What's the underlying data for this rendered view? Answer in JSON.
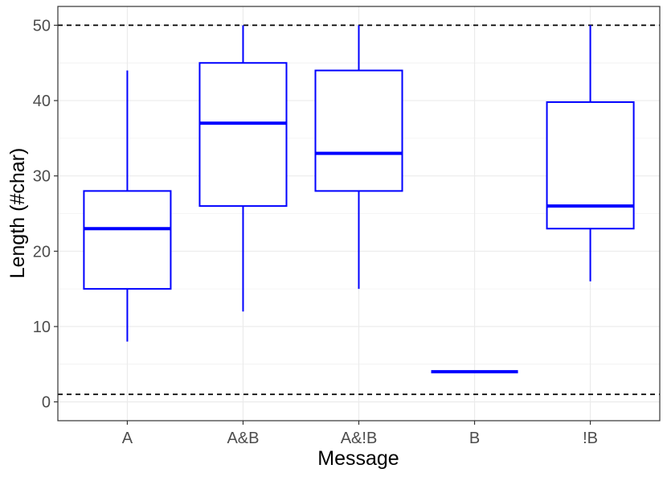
{
  "chart_data": {
    "type": "boxplot",
    "xlabel": "Message",
    "ylabel": "Length (#char)",
    "categories": [
      "A",
      "A&B",
      "A&!B",
      "B",
      "!B"
    ],
    "boxes": [
      {
        "category": "A",
        "min": 8,
        "q1": 15,
        "median": 23,
        "q3": 28,
        "max": 44
      },
      {
        "category": "A&B",
        "min": 12,
        "q1": 26,
        "median": 37,
        "q3": 45,
        "max": 50
      },
      {
        "category": "A&!B",
        "min": 15,
        "q1": 28,
        "median": 33,
        "q3": 44,
        "max": 50
      },
      {
        "category": "B",
        "min": 4,
        "q1": 4,
        "median": 4,
        "q3": 4,
        "max": 4
      },
      {
        "category": "!B",
        "min": 16,
        "q1": 23,
        "median": 26,
        "q3": 39.8,
        "max": 50
      }
    ],
    "reference_lines": [
      {
        "y": 50,
        "style": "dashed",
        "color": "#000000"
      },
      {
        "y": 1,
        "style": "dashed",
        "color": "#000000"
      }
    ],
    "yticks": [
      0,
      10,
      20,
      30,
      40,
      50
    ],
    "ylim": [
      -2.5,
      52.5
    ],
    "grid": true,
    "colors": {
      "box": "#0000ff",
      "panel_border": "#333333",
      "grid": "#ebebeb"
    }
  }
}
